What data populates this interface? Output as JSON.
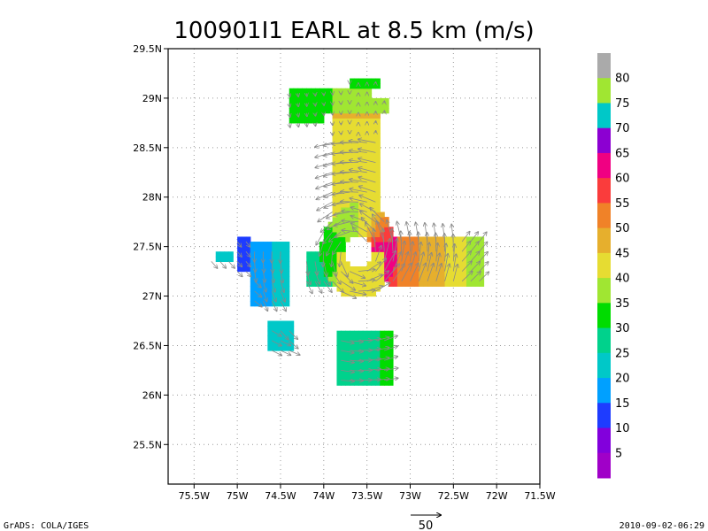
{
  "title": "100901I1 EARL at 8.5 km (m/s)",
  "footer": {
    "left": "GrADS: COLA/IGES",
    "right": "2010-09-02-06:29"
  },
  "vector_reference": {
    "label": "50",
    "value": 50
  },
  "colorbar": {
    "labels": [
      "5",
      "10",
      "15",
      "20",
      "25",
      "30",
      "35",
      "40",
      "45",
      "50",
      "55",
      "60",
      "65",
      "70",
      "75",
      "80"
    ],
    "colors": [
      "#a000c8",
      "#8200dc",
      "#1e3cff",
      "#00a0ff",
      "#00c8c8",
      "#00d28c",
      "#00dc00",
      "#a0e632",
      "#e6dc32",
      "#e6af2d",
      "#f08228",
      "#fa3c3c",
      "#f00082",
      "#8c00d2",
      "#00c8c8",
      "#a0e632",
      "#aaaaaa"
    ]
  },
  "chart_data": {
    "type": "heatmap",
    "title": "100901I1 EARL at 8.5 km (m/s)",
    "xlabel": "",
    "ylabel": "",
    "xlim": [
      -75.8,
      -71.5
    ],
    "ylim": [
      25.1,
      29.5
    ],
    "x_ticks": [
      {
        "value": -75.5,
        "label": "75.5W"
      },
      {
        "value": -75.0,
        "label": "75W"
      },
      {
        "value": -74.5,
        "label": "74.5W"
      },
      {
        "value": -74.0,
        "label": "74W"
      },
      {
        "value": -73.5,
        "label": "73.5W"
      },
      {
        "value": -73.0,
        "label": "73W"
      },
      {
        "value": -72.5,
        "label": "72.5W"
      },
      {
        "value": -72.0,
        "label": "72W"
      },
      {
        "value": -71.5,
        "label": "71.5W"
      }
    ],
    "y_ticks": [
      {
        "value": 25.5,
        "label": "25.5N"
      },
      {
        "value": 26.0,
        "label": "26N"
      },
      {
        "value": 26.5,
        "label": "26.5N"
      },
      {
        "value": 27.0,
        "label": "27N"
      },
      {
        "value": 27.5,
        "label": "27.5N"
      },
      {
        "value": 28.0,
        "label": "28N"
      },
      {
        "value": 28.5,
        "label": "28.5N"
      },
      {
        "value": 29.0,
        "label": "29N"
      },
      {
        "value": 29.5,
        "label": "29.5N"
      }
    ],
    "grid": true,
    "vortex_center": {
      "lon": -73.62,
      "lat": 27.43
    },
    "wind_units": "m/s"
  }
}
